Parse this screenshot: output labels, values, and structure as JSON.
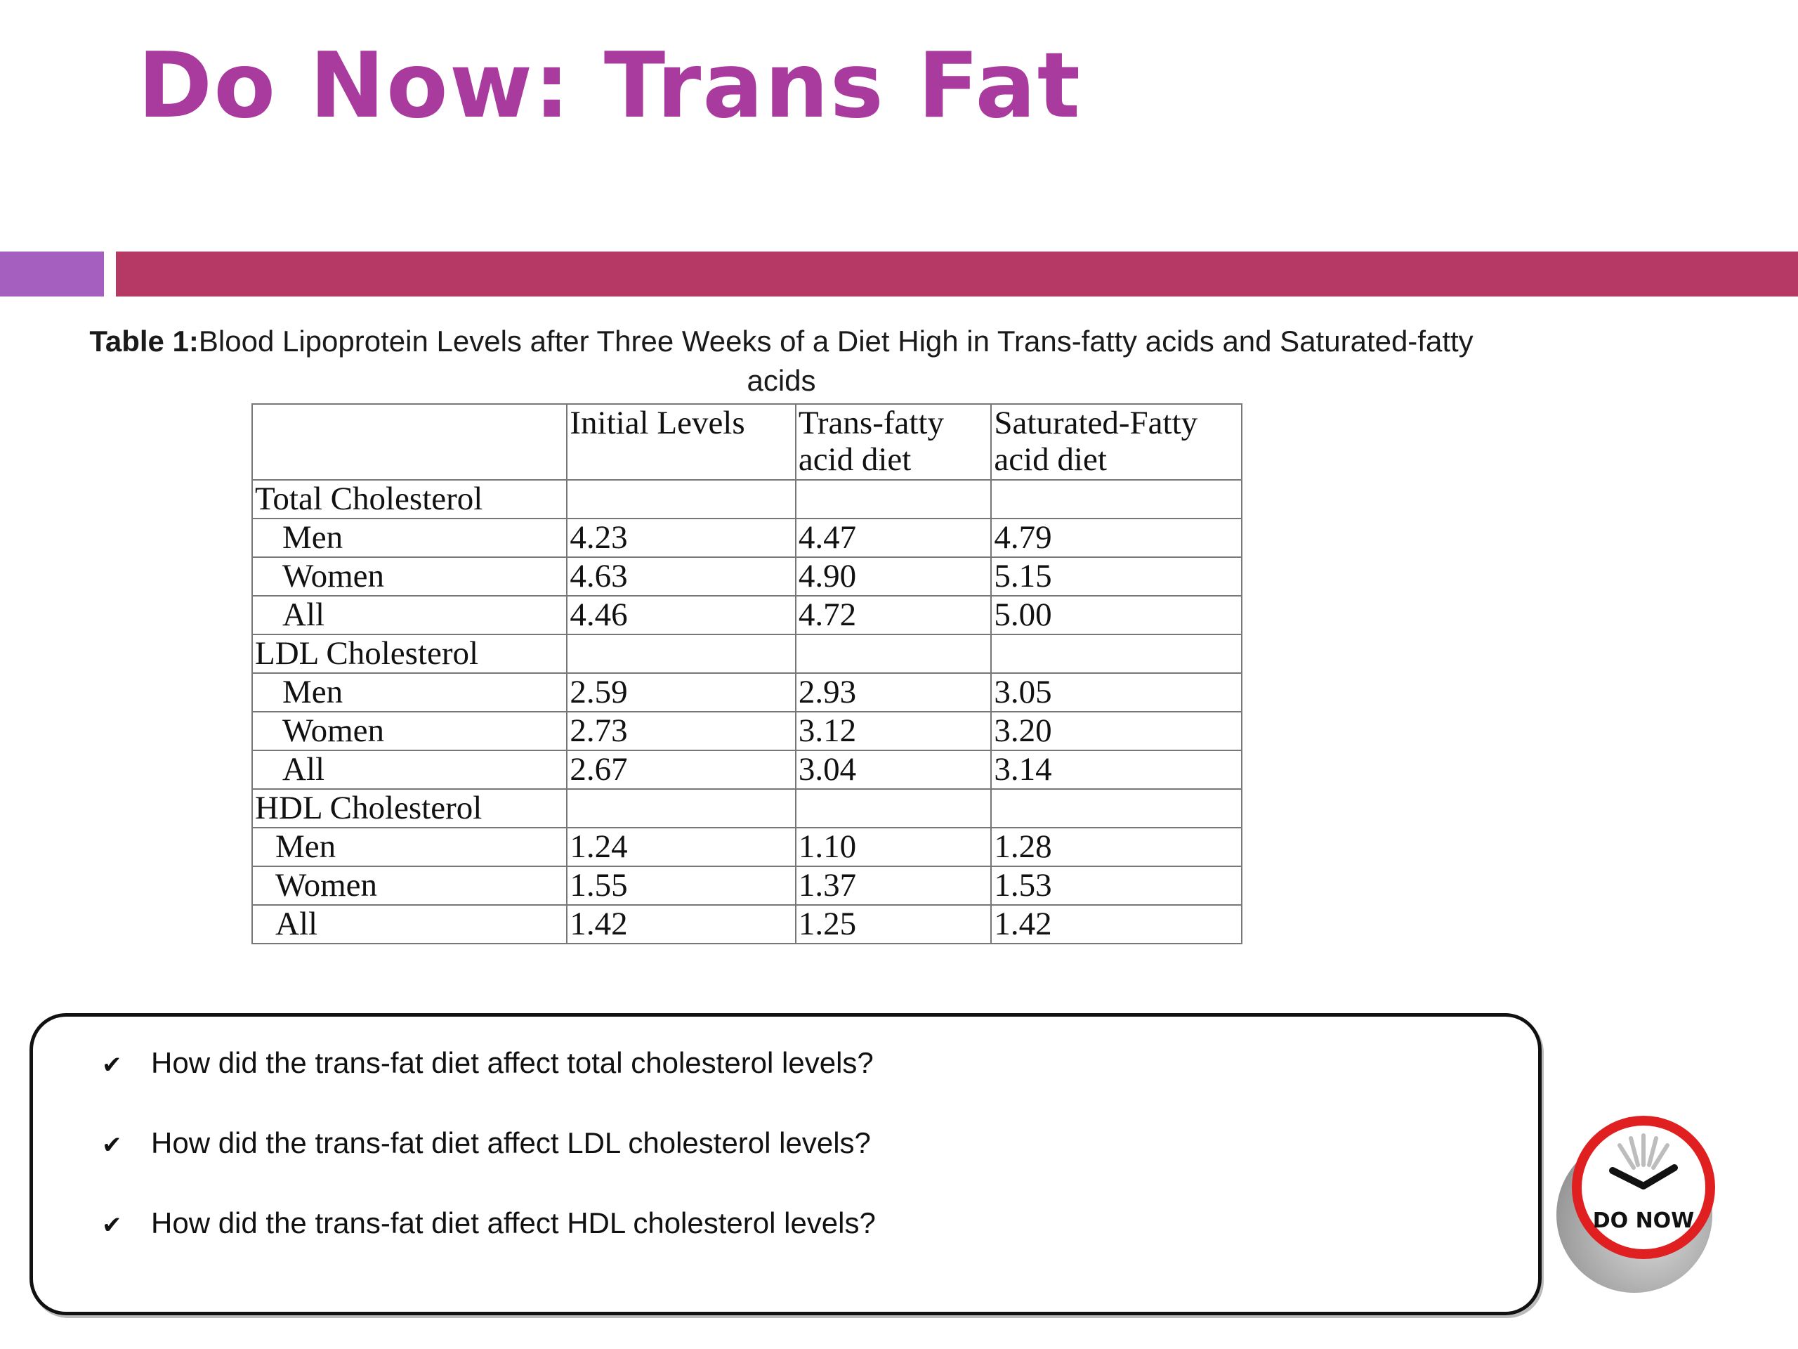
{
  "slide": {
    "title": "Do Now: Trans Fat"
  },
  "table": {
    "caption_label": "Table 1:",
    "caption_text": "Blood Lipoprotein Levels after Three Weeks of a Diet High in Trans-fatty acids and Saturated-fatty acids",
    "headers": [
      "",
      "Initial Levels",
      "Trans-fatty acid diet",
      "Saturated-Fatty acid diet"
    ],
    "groups": [
      {
        "name": "Total Cholesterol",
        "rows": [
          {
            "label": "Men",
            "values": [
              "4.23",
              "4.47",
              "4.79"
            ]
          },
          {
            "label": "Women",
            "values": [
              "4.63",
              "4.90",
              "5.15"
            ]
          },
          {
            "label": "All",
            "values": [
              "4.46",
              "4.72",
              "5.00"
            ]
          }
        ]
      },
      {
        "name": "LDL Cholesterol",
        "rows": [
          {
            "label": "Men",
            "values": [
              "2.59",
              "2.93",
              "3.05"
            ]
          },
          {
            "label": "Women",
            "values": [
              "2.73",
              "3.12",
              "3.20"
            ]
          },
          {
            "label": "All",
            "values": [
              "2.67",
              "3.04",
              "3.14"
            ]
          }
        ]
      },
      {
        "name": "HDL Cholesterol",
        "rows": [
          {
            "label": "Men",
            "values": [
              "1.24",
              "1.10",
              "1.28"
            ]
          },
          {
            "label": "Women",
            "values": [
              "1.55",
              "1.37",
              "1.53"
            ]
          },
          {
            "label": "All",
            "values": [
              "1.42",
              "1.25",
              "1.42"
            ]
          }
        ]
      }
    ]
  },
  "questions": {
    "check_icon": "checkmark-icon",
    "items": [
      "How did the trans-fat diet affect total cholesterol levels?",
      "How did the trans-fat diet affect LDL cholesterol levels?",
      "How did the trans-fat diet affect HDL cholesterol levels?"
    ]
  },
  "badge": {
    "label": "DO NOW",
    "icon": "do-now-clock-icon"
  },
  "colors": {
    "title": "#A93A9E",
    "bar_left": "#A55FBE",
    "bar_right": "#B53964",
    "badge_ring": "#E02020"
  }
}
